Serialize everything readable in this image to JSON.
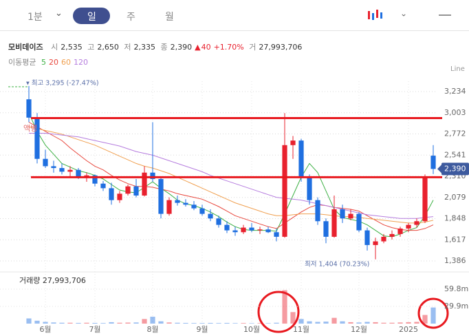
{
  "toolbar": {
    "tabs": [
      "1분",
      "일",
      "주",
      "월"
    ],
    "mode": "Line"
  },
  "quote": {
    "name": "모비데이즈",
    "items": [
      {
        "label": "시",
        "value": "2,535"
      },
      {
        "label": "고",
        "value": "2,650"
      },
      {
        "label": "저",
        "value": "2,335"
      },
      {
        "label": "종",
        "value": "2,390"
      }
    ],
    "change": "40",
    "change_pct": "+1.70%",
    "volume_label": "거",
    "volume": "27,993,706"
  },
  "ma_label": "이동평균",
  "chart_data": {
    "type": "candlestick",
    "categories": [
      null,
      null,
      "6월",
      null,
      null,
      null,
      null,
      null,
      "7월",
      null,
      null,
      null,
      null,
      null,
      null,
      "8월",
      null,
      null,
      null,
      null,
      null,
      "9월",
      null,
      null,
      null,
      null,
      null,
      "10월",
      null,
      null,
      null,
      null,
      null,
      "11월",
      null,
      null,
      null,
      null,
      null,
      null,
      "12월",
      null,
      null,
      null,
      null,
      null,
      "2025",
      null,
      null,
      null
    ],
    "open": [
      3150,
      2950,
      2500,
      2420,
      2400,
      2360,
      2380,
      2300,
      2320,
      2230,
      2180,
      2050,
      2120,
      2200,
      2100,
      2350,
      2280,
      1900,
      2050,
      2020,
      2000,
      1960,
      1900,
      1850,
      1780,
      1720,
      1700,
      1750,
      1720,
      1730,
      1700,
      1650,
      2650,
      2700,
      2300,
      2050,
      1820,
      1650,
      1950,
      1850,
      1900,
      1720,
      1560,
      1600,
      1650,
      1680,
      1740,
      1780,
      1820,
      2535
    ],
    "high": [
      3295,
      3000,
      2600,
      2480,
      2450,
      2420,
      2400,
      2350,
      2330,
      2260,
      2240,
      2150,
      2220,
      2280,
      2420,
      2900,
      2300,
      2080,
      2100,
      2060,
      2040,
      2000,
      1950,
      1880,
      1820,
      1760,
      1780,
      1800,
      1760,
      1760,
      1740,
      3000,
      2750,
      2720,
      2330,
      2080,
      1850,
      2100,
      2000,
      1950,
      1920,
      1750,
      1640,
      1680,
      1720,
      1760,
      1800,
      1850,
      2330,
      2650
    ],
    "low": [
      2900,
      2450,
      2400,
      2350,
      2330,
      2300,
      2280,
      2250,
      2200,
      2150,
      2000,
      2020,
      2100,
      2080,
      2090,
      2250,
      1850,
      1880,
      1990,
      1980,
      1940,
      1880,
      1820,
      1750,
      1690,
      1660,
      1680,
      1700,
      1680,
      1690,
      1600,
      1640,
      2500,
      2250,
      2000,
      1780,
      1580,
      1640,
      1800,
      1830,
      1700,
      1500,
      1404,
      1580,
      1620,
      1650,
      1700,
      1750,
      1800,
      2335
    ],
    "close": [
      2950,
      2500,
      2420,
      2400,
      2360,
      2380,
      2300,
      2320,
      2230,
      2180,
      2050,
      2120,
      2200,
      2100,
      2350,
      2280,
      1900,
      2050,
      2020,
      2000,
      1960,
      1900,
      1850,
      1780,
      1720,
      1700,
      1750,
      1720,
      1730,
      1700,
      1650,
      2650,
      2700,
      2300,
      2050,
      1820,
      1650,
      1950,
      1850,
      1900,
      1720,
      1560,
      1600,
      1650,
      1680,
      1740,
      1780,
      1820,
      2300,
      2390
    ],
    "volume": [
      9000000,
      5000000,
      3000000,
      2000000,
      1500000,
      1500000,
      1200000,
      1500000,
      1200000,
      1000000,
      2500000,
      1500000,
      1800000,
      2000000,
      8000000,
      12000000,
      4000000,
      2000000,
      1500000,
      1200000,
      1000000,
      1000000,
      1200000,
      1000000,
      1200000,
      900000,
      1000000,
      800000,
      900000,
      800000,
      1500000,
      58000000,
      20000000,
      8000000,
      4000000,
      3000000,
      3500000,
      10000000,
      4000000,
      2500000,
      2000000,
      3000000,
      2500000,
      1500000,
      1500000,
      2000000,
      2500000,
      3000000,
      15000000,
      27993706
    ],
    "series": [
      {
        "name": "5",
        "color": "#3cb043",
        "values": [
          3000,
          2800,
          2650,
          2550,
          2450,
          2410,
          2370,
          2350,
          2320,
          2280,
          2220,
          2160,
          2140,
          2130,
          2190,
          2250,
          2180,
          2120,
          2050,
          2010,
          1990,
          1960,
          1920,
          1870,
          1810,
          1760,
          1730,
          1720,
          1720,
          1720,
          1710,
          1900,
          2100,
          2300,
          2450,
          2350,
          2150,
          1950,
          1860,
          1840,
          1820,
          1780,
          1720,
          1660,
          1650,
          1680,
          1720,
          1750,
          1880,
          2050
        ]
      },
      {
        "name": "20",
        "color": "#e8473d",
        "values": [
          2900,
          2850,
          2800,
          2750,
          2700,
          2620,
          2550,
          2480,
          2420,
          2380,
          2320,
          2270,
          2230,
          2200,
          2200,
          2190,
          2170,
          2150,
          2120,
          2100,
          2080,
          2060,
          2020,
          1980,
          1930,
          1880,
          1850,
          1820,
          1790,
          1760,
          1740,
          1800,
          1860,
          1920,
          1970,
          2000,
          1990,
          1970,
          1960,
          1950,
          1930,
          1880,
          1830,
          1780,
          1750,
          1730,
          1720,
          1720,
          1740,
          1780
        ]
      },
      {
        "name": "60",
        "color": "#f0a050",
        "values": [
          2850,
          2830,
          2810,
          2790,
          2770,
          2740,
          2710,
          2680,
          2650,
          2610,
          2570,
          2530,
          2490,
          2450,
          2420,
          2400,
          2370,
          2340,
          2300,
          2260,
          2220,
          2180,
          2140,
          2100,
          2060,
          2020,
          1990,
          1960,
          1930,
          1900,
          1880,
          1880,
          1890,
          1900,
          1900,
          1900,
          1890,
          1880,
          1870,
          1870,
          1860,
          1850,
          1840,
          1830,
          1820,
          1810,
          1800,
          1800,
          1810,
          1830
        ]
      },
      {
        "name": "120",
        "color": "#b57cde",
        "values": [
          2780,
          2780,
          2780,
          2770,
          2760,
          2750,
          2740,
          2720,
          2700,
          2680,
          2660,
          2640,
          2610,
          2580,
          2560,
          2540,
          2510,
          2480,
          2450,
          2420,
          2390,
          2360,
          2320,
          2290,
          2260,
          2230,
          2200,
          2170,
          2140,
          2110,
          2080,
          2070,
          2060,
          2050,
          2030,
          2010,
          1990,
          1970,
          1950,
          1930,
          1910,
          1890,
          1880,
          1870,
          1860,
          1850,
          1850,
          1850,
          1860,
          1870
        ]
      }
    ],
    "up_color": "#e8212e",
    "down_color": "#1f6fe0",
    "ylim": [
      1266,
      3347
    ],
    "yticks": [
      {
        "value": 3234,
        "label": "3,234"
      },
      {
        "value": 3003,
        "label": "3,003"
      },
      {
        "value": 2772,
        "label": "2,772"
      },
      {
        "value": 2541,
        "label": "2,541"
      },
      {
        "value": 2310,
        "label": "2,310"
      },
      {
        "value": 2079,
        "label": "2,079"
      },
      {
        "value": 1848,
        "label": "1,848"
      },
      {
        "value": 1617,
        "label": "1,617"
      },
      {
        "value": 1386,
        "label": "1,386"
      }
    ],
    "grid": true,
    "levels": [
      2945,
      2300
    ],
    "level_color": "#e8191f",
    "high_note": "▾ 최고 3,295 (-27.47%)",
    "low_note": "최저 1,404 (70.23%)",
    "side_note": "액병",
    "price_tag": {
      "value": 2390,
      "label": "2,390"
    },
    "volume_title": "거래량 27,993,706",
    "volume_lim": [
      0,
      86100000
    ],
    "volume_ticks": [
      {
        "value": 59800000,
        "label": "59.8m"
      },
      {
        "value": 29900000,
        "label": "29.9m"
      }
    ]
  }
}
